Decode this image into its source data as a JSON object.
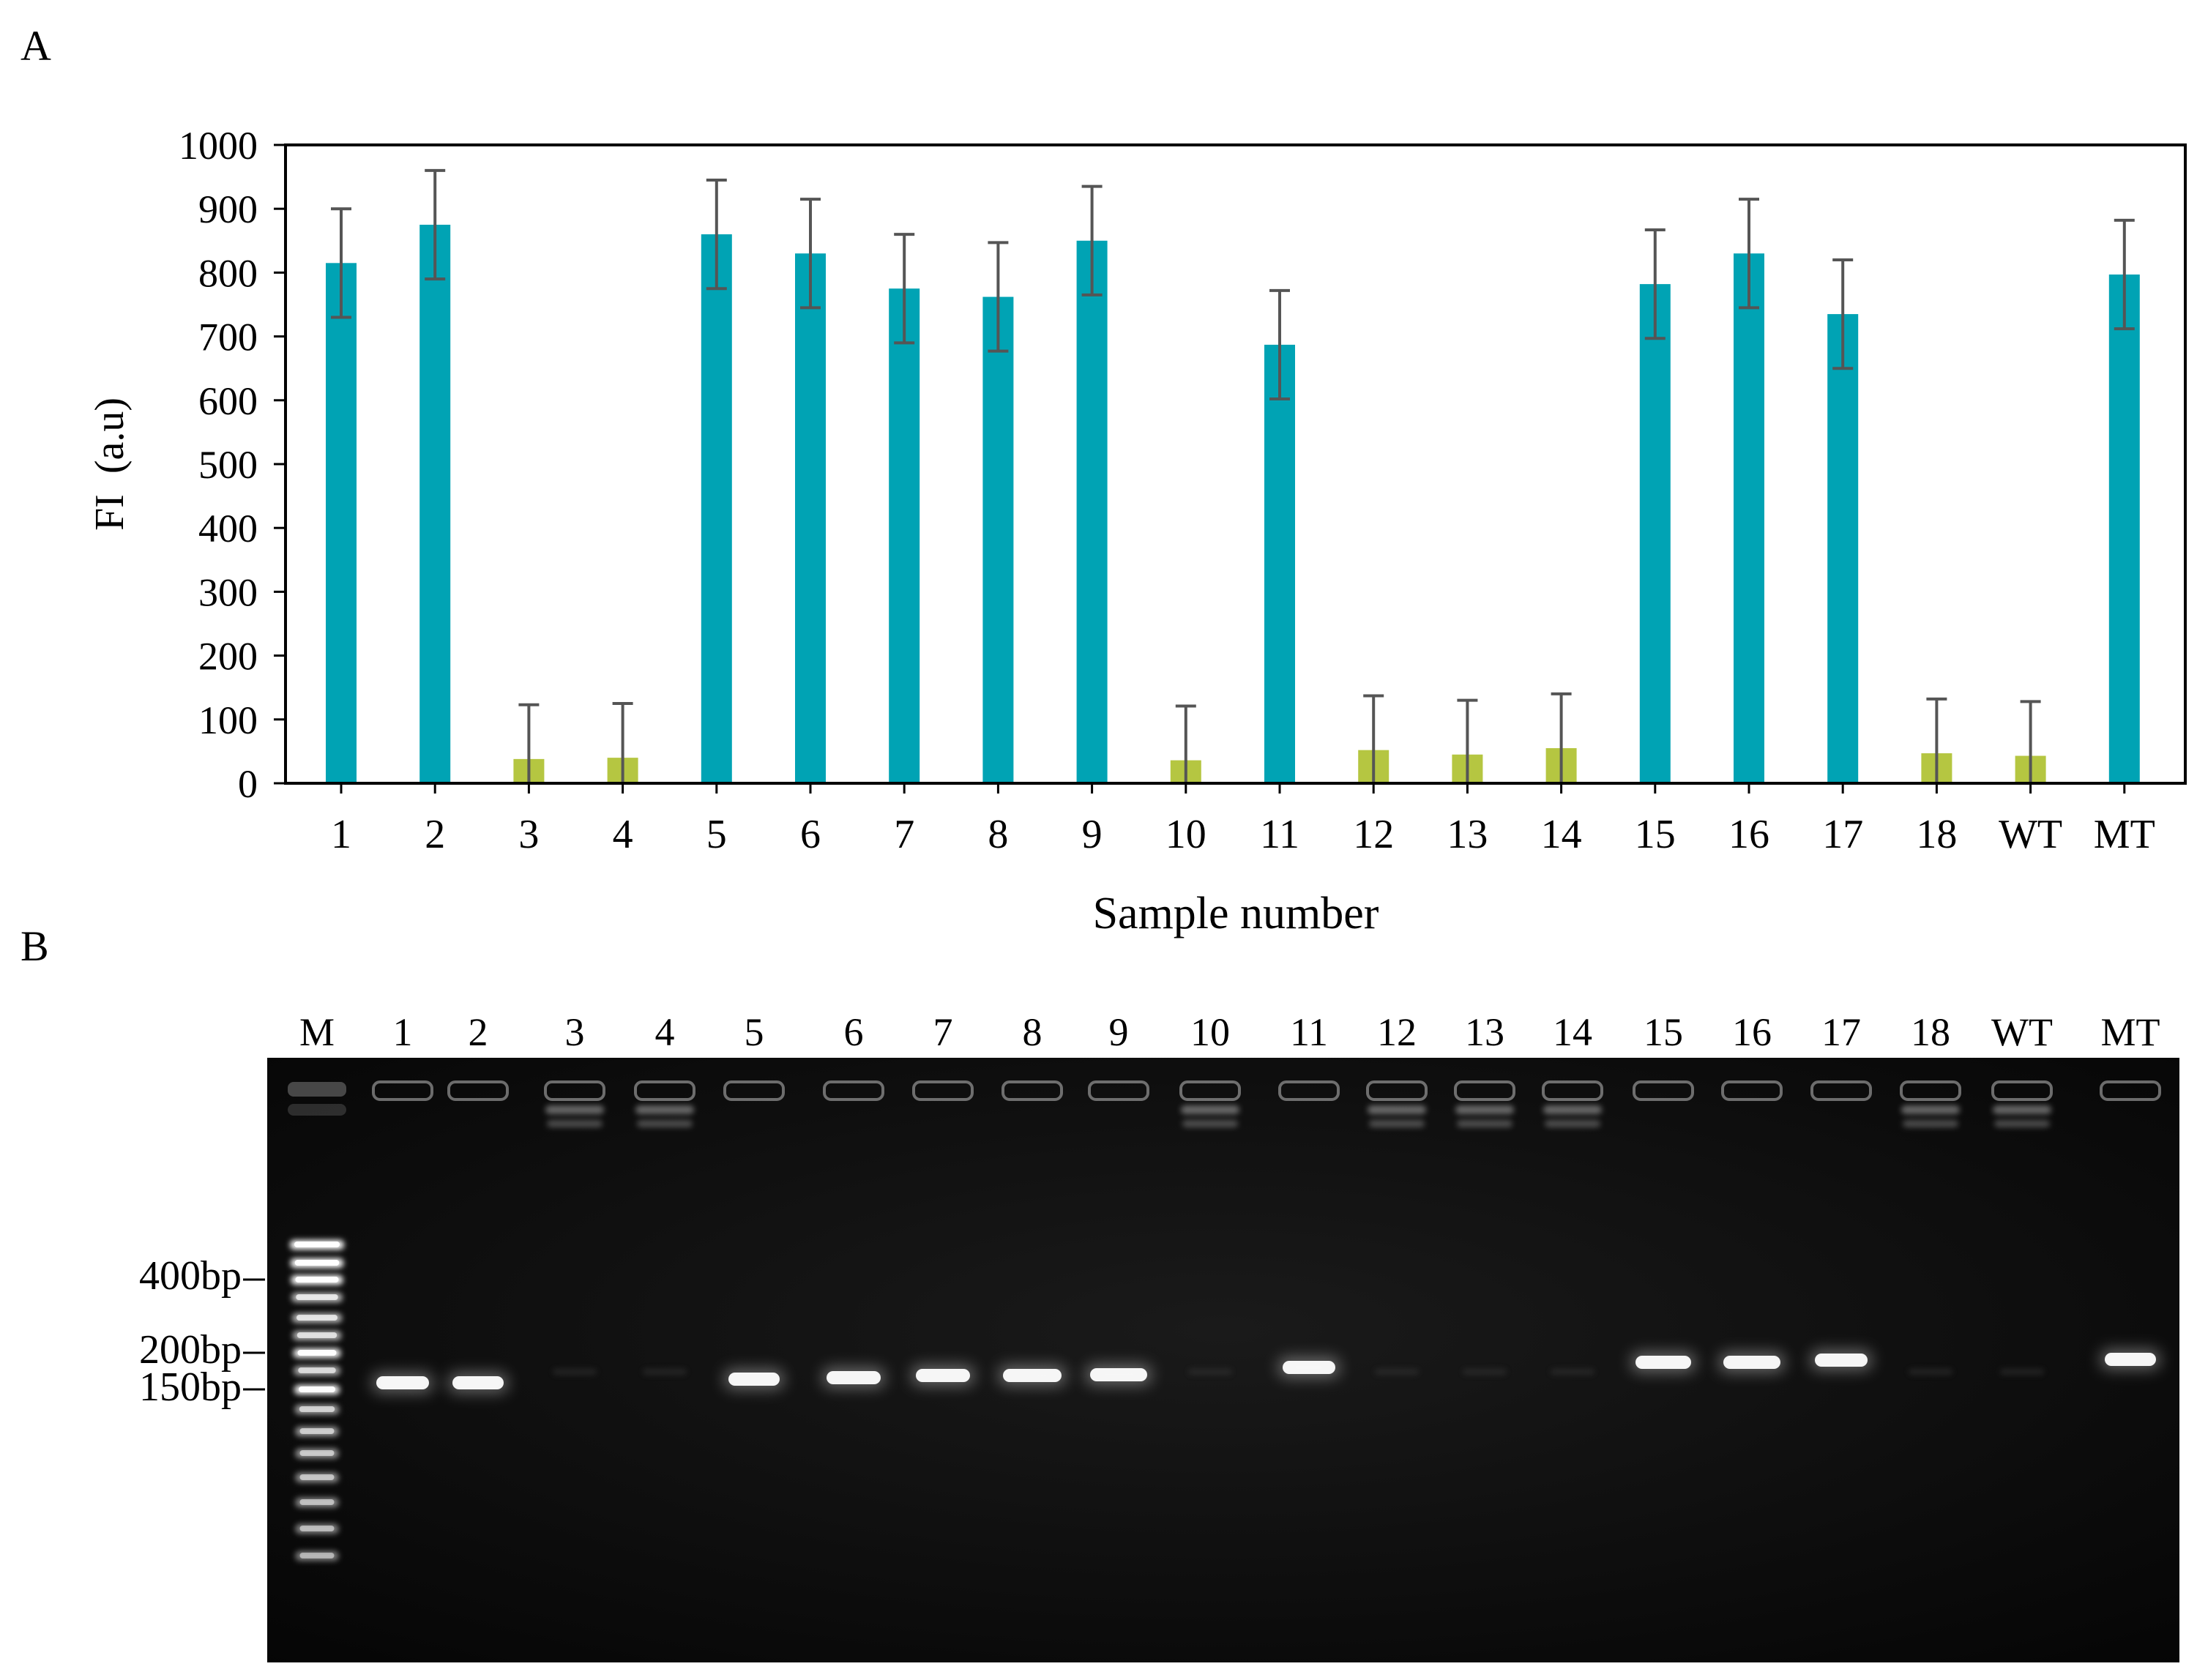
{
  "panel_labels": {
    "a": "A",
    "b": "B"
  },
  "chart_data": {
    "type": "bar",
    "title": "",
    "xlabel": "Sample number",
    "ylabel": "FI  (a.u)",
    "ylim": [
      0,
      1000
    ],
    "yticks": [
      0,
      100,
      200,
      300,
      400,
      500,
      600,
      700,
      800,
      900,
      1000
    ],
    "categories": [
      "1",
      "2",
      "3",
      "4",
      "5",
      "6",
      "7",
      "8",
      "9",
      "10",
      "11",
      "12",
      "13",
      "14",
      "15",
      "16",
      "17",
      "18",
      "WT",
      "MT"
    ],
    "values": [
      815,
      875,
      38,
      40,
      860,
      830,
      775,
      762,
      850,
      36,
      687,
      52,
      45,
      55,
      782,
      830,
      735,
      47,
      43,
      797
    ],
    "errors": [
      85,
      85,
      85,
      85,
      85,
      85,
      85,
      85,
      85,
      85,
      85,
      85,
      85,
      85,
      85,
      85,
      85,
      85,
      85,
      85
    ],
    "bar_colors": [
      "#00a3b4",
      "#00a3b4",
      "#b5c641",
      "#b5c641",
      "#00a3b4",
      "#00a3b4",
      "#00a3b4",
      "#00a3b4",
      "#00a3b4",
      "#b5c641",
      "#00a3b4",
      "#b5c641",
      "#b5c641",
      "#b5c641",
      "#00a3b4",
      "#00a3b4",
      "#00a3b4",
      "#b5c641",
      "#b5c641",
      "#00a3b4"
    ],
    "error_bar_color": "#555555",
    "grid": false,
    "legend": "none"
  },
  "gel": {
    "lane_labels": [
      "M",
      "1",
      "2",
      "3",
      "4",
      "5",
      "6",
      "7",
      "8",
      "9",
      "10",
      "11",
      "12",
      "13",
      "14",
      "15",
      "16",
      "17",
      "18",
      "WT",
      "MT"
    ],
    "size_markers": [
      "400bp",
      "200bp",
      "150bp"
    ],
    "lanes_with_product": [
      "1",
      "2",
      "5",
      "6",
      "7",
      "8",
      "9",
      "11",
      "15",
      "16",
      "17",
      "MT"
    ],
    "background_color": "#0c0c0c",
    "band_color": "#ffffff"
  }
}
